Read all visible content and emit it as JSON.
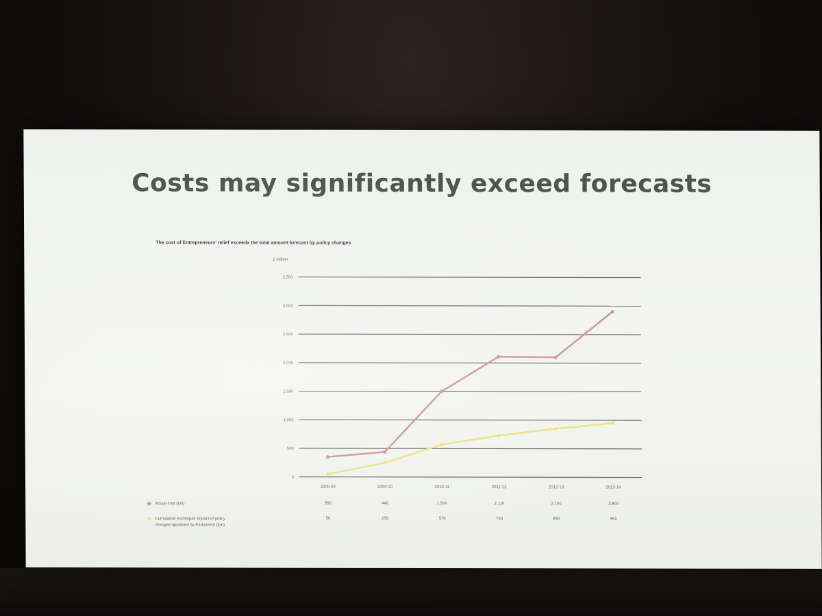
{
  "slide": {
    "title": "Costs may significantly exceed forecasts",
    "chart_heading": "The cost of Entrepreneurs' relief exceeds the total amount forecast by policy changes",
    "unit_label": "£ million"
  },
  "colors": {
    "series_actual": "#c8909e",
    "series_forecast": "#ece07a",
    "gridline": "#666666",
    "slide_bg": "#f1f3ef",
    "title": "#4f544f"
  },
  "chart_data": {
    "type": "line",
    "title": "The cost of Entrepreneurs' relief exceeds the total amount forecast by policy changes",
    "ylabel": "£ million",
    "xlabel": "",
    "categories": [
      "2008-09",
      "2009-10",
      "2010-11",
      "2011-12",
      "2012-13",
      "2013-14"
    ],
    "yticks": [
      0,
      500,
      1000,
      1500,
      2000,
      2500,
      3000,
      3500
    ],
    "ylim": [
      0,
      3500
    ],
    "grid": true,
    "legend": "bottom-left",
    "series": [
      {
        "name": "Actual cost (£m)",
        "values": [
          350,
          440,
          1500,
          2110,
          2100,
          2900
        ]
      },
      {
        "name": "Cumulative exchequer impact of policy changes approved by Parliament (£m)",
        "values": [
          50,
          250,
          570,
          730,
          850,
          951
        ]
      }
    ],
    "table_rows": [
      {
        "label": "Actual cost (£m)",
        "cells": [
          "350",
          "440",
          "1,500",
          "2,110",
          "2,100",
          "2,900"
        ]
      },
      {
        "label": "Cumulative exchequer impact of policy changes approved by Parliament (£m)",
        "cells": [
          "50",
          "250",
          "570",
          "730",
          "850",
          "951"
        ]
      }
    ],
    "ytick_labels": [
      "0",
      "500",
      "1,000",
      "1,500",
      "2,000",
      "2,500",
      "3,000",
      "3,500"
    ]
  }
}
